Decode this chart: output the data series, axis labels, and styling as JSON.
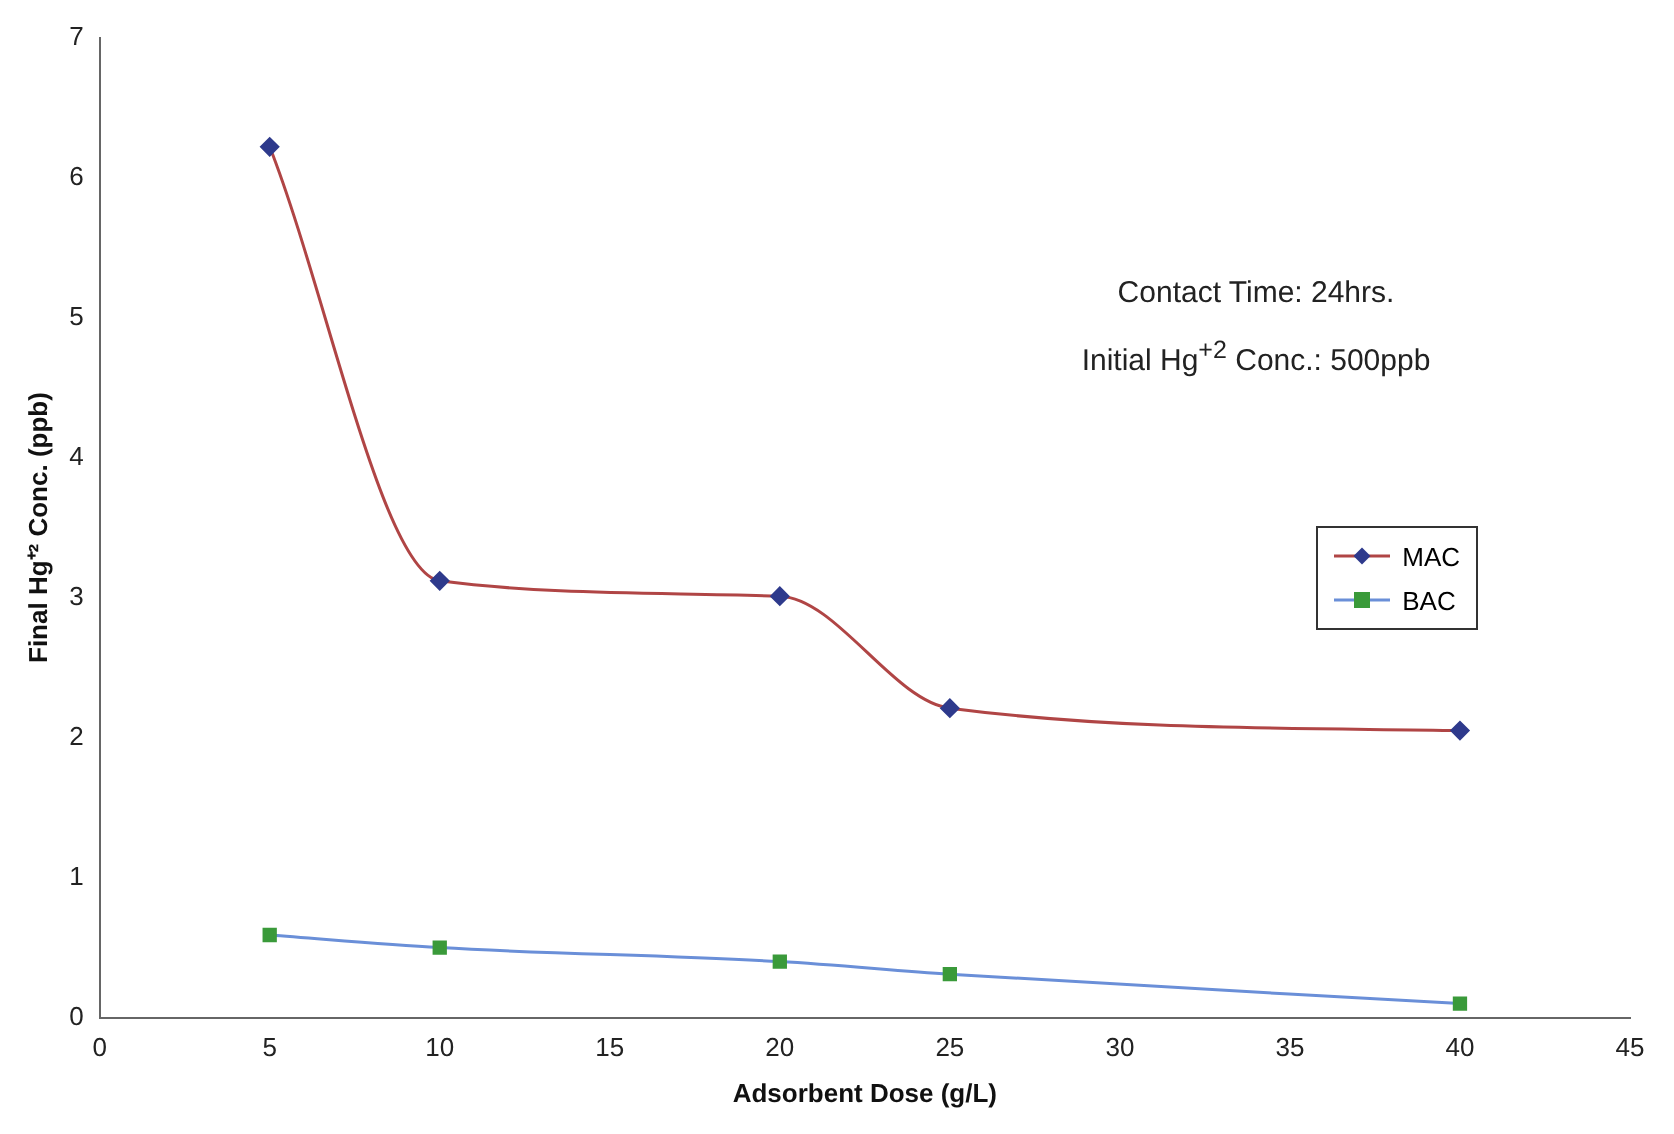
{
  "chart_data": {
    "type": "line",
    "xlabel": "Adsorbent Dose (g/L)",
    "ylabel": "Final Hg⁺² Conc. (ppb)",
    "x": [
      5,
      10,
      20,
      25,
      40
    ],
    "series": [
      {
        "name": "MAC",
        "color": "#b04545",
        "colors": [
          "#2e3a8c",
          "#2e3a8c",
          "#2e3a8c",
          "#2e3a8c",
          "#2e3a8c"
        ],
        "marker": "diamond",
        "values": [
          6.22,
          3.12,
          3.01,
          2.21,
          2.05
        ]
      },
      {
        "name": "BAC",
        "color": "#6a8fd8",
        "colors": [
          "#3a9a3a",
          "#3a9a3a",
          "#3a9a3a",
          "#3a9a3a",
          "#3a9a3a"
        ],
        "marker": "square",
        "values": [
          0.59,
          0.5,
          0.4,
          0.31,
          0.1
        ]
      }
    ],
    "xlim": [
      0,
      45
    ],
    "xticks": [
      0,
      5,
      10,
      15,
      20,
      25,
      30,
      35,
      40,
      45
    ],
    "ylim": [
      0,
      7
    ],
    "yticks": [
      0,
      1,
      2,
      3,
      4,
      5,
      6,
      7
    ],
    "grid": false,
    "legend": "right",
    "annotations": [
      "Contact Time: 24hrs.",
      "Initial Hg$^{+2}$ Conc.: 500ppb"
    ]
  }
}
